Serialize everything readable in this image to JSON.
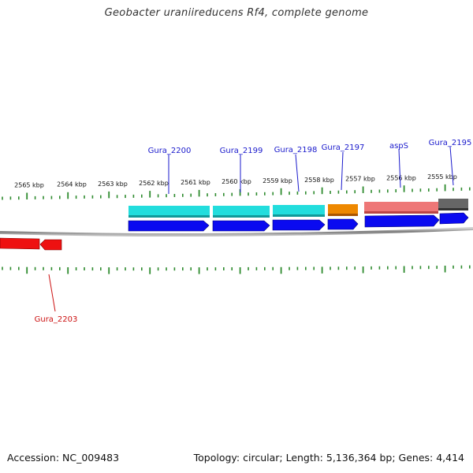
{
  "title": "Geobacter uraniireducens Rf4, complete genome",
  "footer": {
    "accession": "Accession: NC_009483",
    "stats": "Topology: circular; Length: 5,136,364 bp; Genes: 4,414"
  },
  "scale": {
    "unit": "kbp",
    "labels": [
      "2565 kbp",
      "2564 kbp",
      "2563 kbp",
      "2562 kbp",
      "2561 kbp",
      "2560 kbp",
      "2559 kbp",
      "2558 kbp",
      "2557 kbp",
      "2556 kbp",
      "2555 kbp"
    ]
  },
  "colors": {
    "backbone": "#888888",
    "tick": "#2e8b2e",
    "gene_label_forward": "#1a1acc",
    "gene_label_reverse": "#cc1111",
    "cds_forward": "#0a0af0",
    "cds_reverse": "#ee1111",
    "cog_cyan": "#22dddd",
    "cog_orange": "#ee8800",
    "cog_pink": "#ee7777",
    "cog_grey": "#666666"
  },
  "genes": [
    {
      "name": "Gura_2200",
      "strand": "forward",
      "cog_color": "cyan"
    },
    {
      "name": "Gura_2199",
      "strand": "forward",
      "cog_color": "cyan"
    },
    {
      "name": "Gura_2198",
      "strand": "forward",
      "cog_color": "cyan"
    },
    {
      "name": "Gura_2197",
      "strand": "forward",
      "cog_color": "orange"
    },
    {
      "name": "aspS",
      "strand": "forward",
      "cog_color": "pink"
    },
    {
      "name": "Gura_2195",
      "strand": "forward",
      "cog_color": "grey"
    },
    {
      "name": "Gura_2203",
      "strand": "reverse",
      "cog_color": "none"
    }
  ]
}
